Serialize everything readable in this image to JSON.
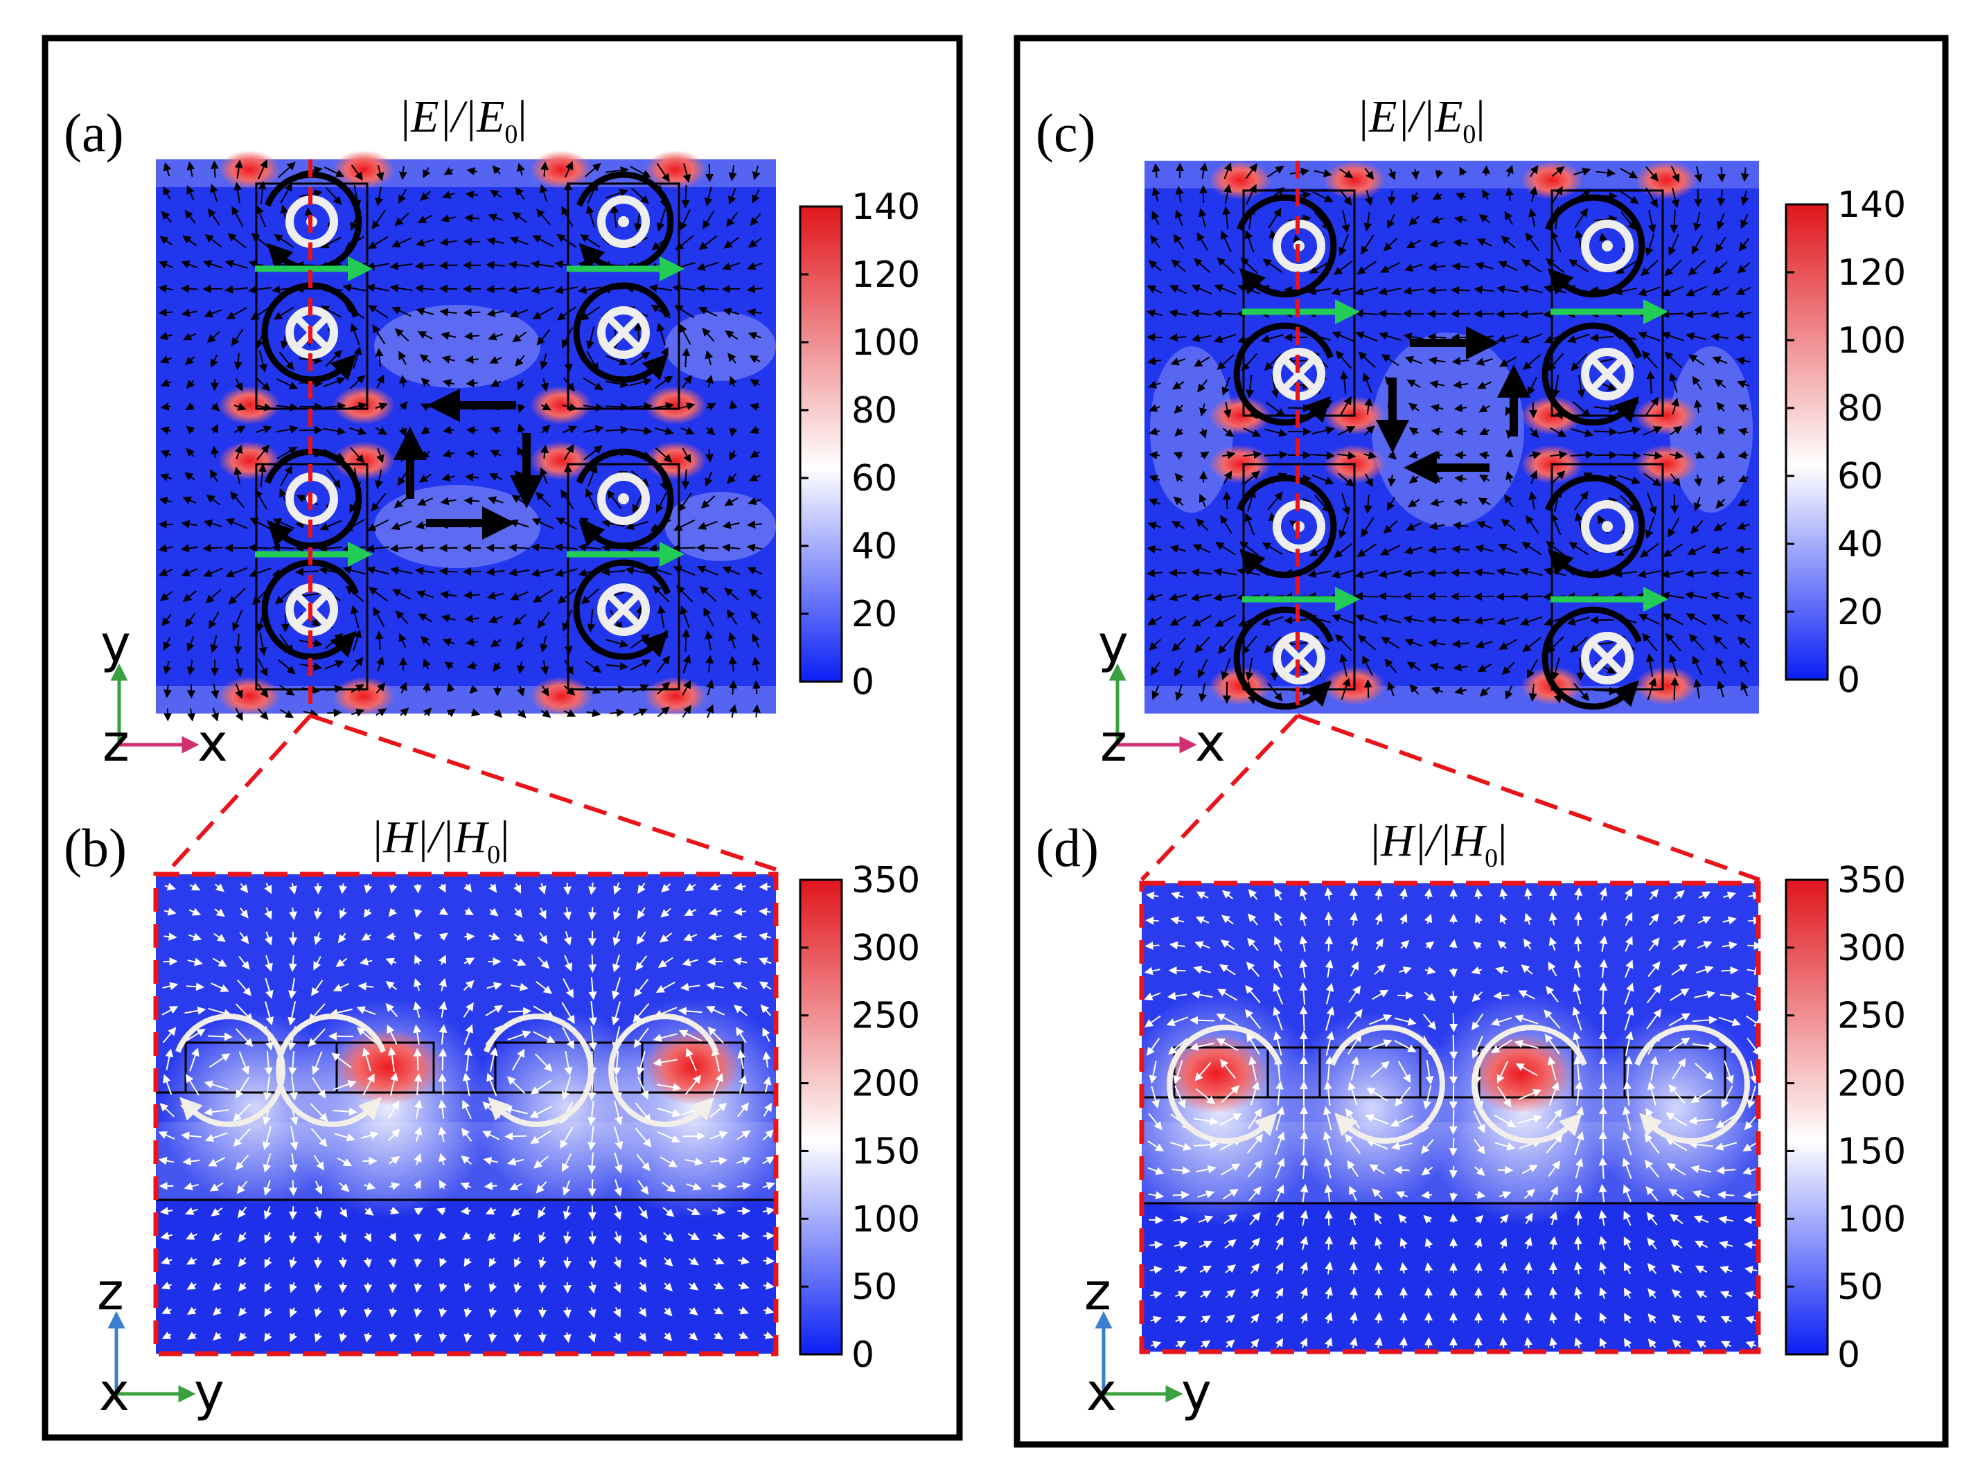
{
  "panels": {
    "a": {
      "label": "(a)",
      "title_main": "|E|/|E",
      "title_sub": "0",
      "title_end": "|"
    },
    "b": {
      "label": "(b)",
      "title_main": "|H|/|H",
      "title_sub": "0",
      "title_end": "|"
    },
    "c": {
      "label": "(c)",
      "title_main": "|E|/|E",
      "title_sub": "0",
      "title_end": "|"
    },
    "d": {
      "label": "(d)",
      "title_main": "|H|/|H",
      "title_sub": "0",
      "title_end": "|"
    }
  },
  "colorbars": {
    "e_field": {
      "ticks": [
        "140",
        "120",
        "100",
        "80",
        "60",
        "40",
        "20",
        "0"
      ],
      "max": 140
    },
    "h_field": {
      "ticks": [
        "350",
        "300",
        "250",
        "200",
        "150",
        "100",
        "50",
        "0"
      ],
      "max": 350
    }
  },
  "axes": {
    "top": {
      "vertical": "y",
      "horizontal": "x",
      "out_of_plane": "z"
    },
    "bottom": {
      "vertical": "z",
      "horizontal": "y",
      "out_of_plane": "x"
    }
  },
  "colors": {
    "low": "#1e2ff0",
    "mid": "#ffffff",
    "high": "#e8141a",
    "cut_line": "#e8141a",
    "current_arrow": "#22cc55",
    "axis_green": "#3aa040",
    "axis_red": "#d03070",
    "axis_blue": "#3a7fcc",
    "frame": "#000000"
  }
}
